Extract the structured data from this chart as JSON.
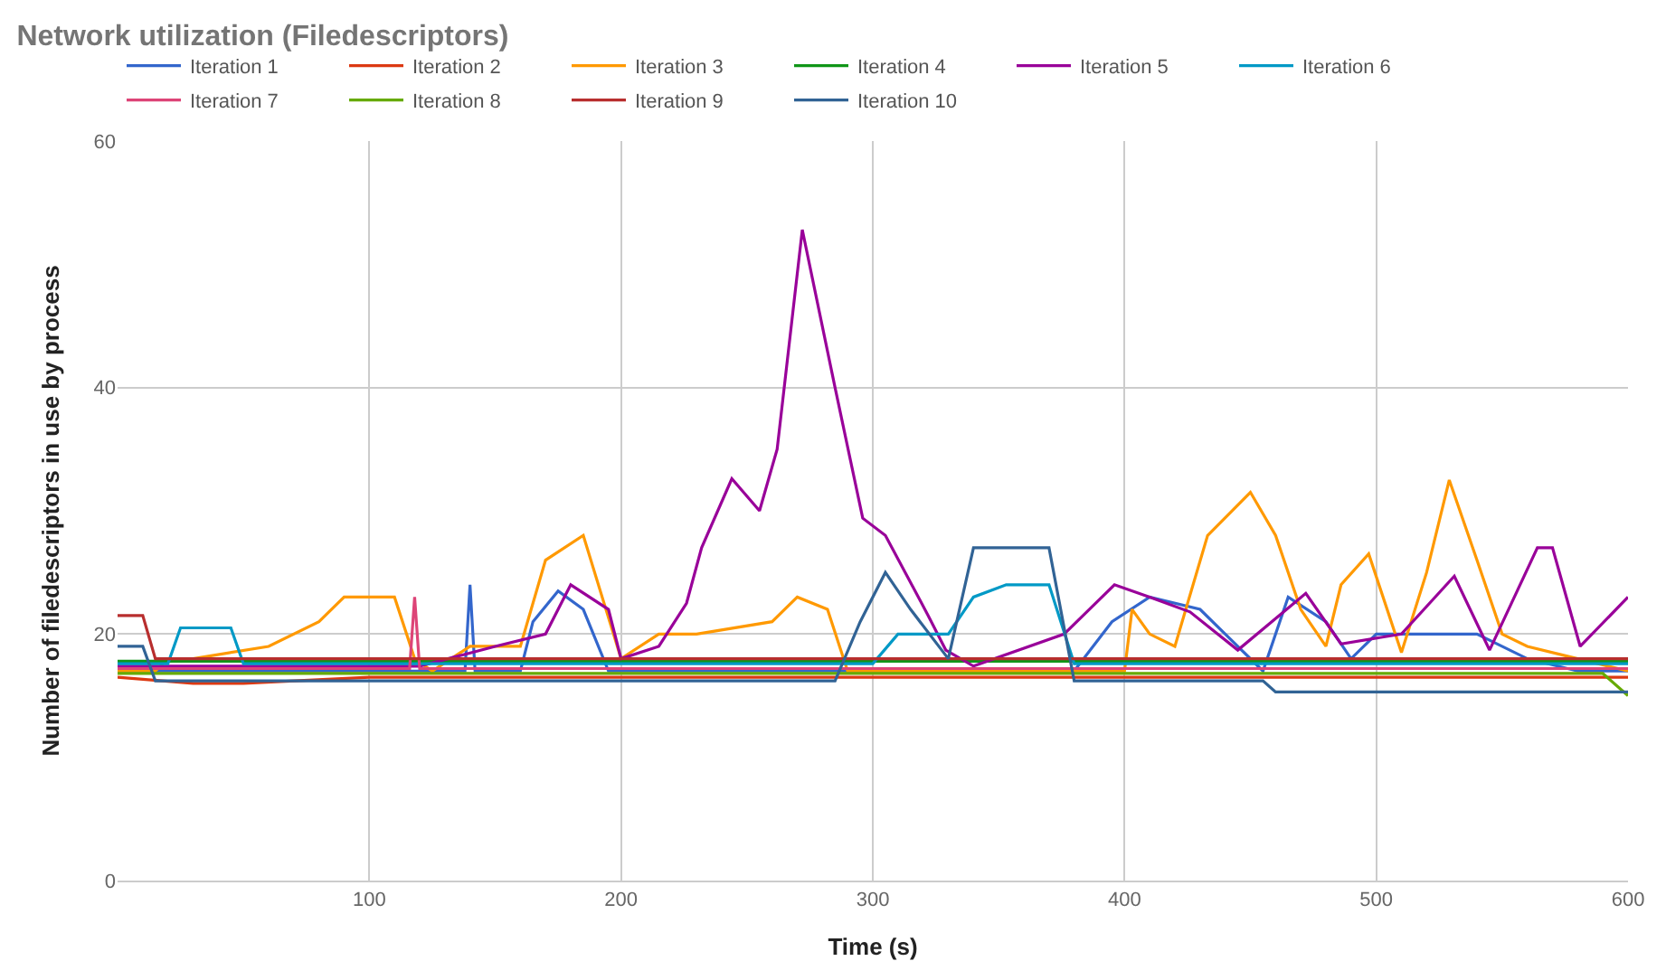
{
  "chart_data": {
    "type": "line",
    "title": "Network utilization (Filedescriptors)",
    "xlabel": "Time (s)",
    "ylabel": "Number of filedescriptors in use by process",
    "xlim": [
      0,
      600
    ],
    "xticks": [
      100,
      200,
      300,
      400,
      500,
      600
    ],
    "ylim": [
      0,
      60
    ],
    "yticks": [
      0,
      20,
      40,
      60
    ],
    "grid": true,
    "legend": "top",
    "marker": "none",
    "line_style": "solid",
    "series": [
      {
        "name": "Iteration 1",
        "color": "#3366cc",
        "x": [
          0,
          40,
          100,
          138,
          140,
          142,
          160,
          165,
          175,
          185,
          195,
          200,
          300,
          380,
          395,
          410,
          430,
          440,
          455,
          465,
          480,
          490,
          500,
          520,
          540,
          560,
          580,
          600
        ],
        "values": [
          17,
          17,
          17,
          17,
          24,
          17,
          17,
          21,
          23.5,
          22,
          17,
          17,
          17,
          17,
          21,
          23,
          22,
          20,
          17,
          23,
          21,
          18,
          20,
          20,
          20,
          18,
          17,
          17
        ]
      },
      {
        "name": "Iteration 2",
        "color": "#dc3912",
        "x": [
          0,
          30,
          50,
          100,
          200,
          300,
          400,
          500,
          600
        ],
        "values": [
          16.5,
          16,
          16,
          16.5,
          16.5,
          16.5,
          16.5,
          16.5,
          16.5
        ]
      },
      {
        "name": "Iteration 3",
        "color": "#ff9900",
        "x": [
          0,
          15,
          20,
          30,
          60,
          80,
          90,
          110,
          118,
          125,
          140,
          160,
          170,
          185,
          200,
          215,
          230,
          260,
          270,
          282,
          290,
          300,
          400,
          403,
          410,
          420,
          433,
          450,
          460,
          470,
          480,
          486,
          497,
          510,
          520,
          529,
          540,
          550,
          560,
          580,
          600
        ],
        "values": [
          17,
          17,
          18,
          18,
          19,
          21,
          23,
          23,
          18,
          17,
          19,
          19,
          26,
          28,
          18,
          20,
          20,
          21,
          23,
          22,
          17,
          17,
          17,
          22,
          20,
          19,
          28,
          31.5,
          28,
          22,
          19,
          24,
          26.5,
          18.5,
          25,
          32.5,
          26,
          20,
          19,
          18,
          17
        ]
      },
      {
        "name": "Iteration 4",
        "color": "#109618",
        "x": [
          0,
          200,
          400,
          600
        ],
        "values": [
          17.8,
          17.8,
          17.8,
          17.8
        ]
      },
      {
        "name": "Iteration 5",
        "color": "#990099",
        "x": [
          0,
          120,
          150,
          170,
          180,
          195,
          200,
          215,
          226,
          232,
          244,
          255,
          262,
          272,
          285,
          296,
          305,
          322,
          329,
          340,
          376,
          396,
          410,
          426,
          445,
          472,
          486,
          510,
          531,
          545,
          564,
          570,
          581,
          600
        ],
        "values": [
          17.4,
          17.4,
          19,
          20,
          24,
          22,
          18,
          19,
          22.5,
          27,
          32.6,
          30,
          35,
          52.8,
          40,
          29.4,
          28,
          21.5,
          18.7,
          17.4,
          20,
          24,
          23,
          21.8,
          18.7,
          23.3,
          19.2,
          20,
          24.7,
          18.7,
          27,
          27,
          19,
          23
        ]
      },
      {
        "name": "Iteration 6",
        "color": "#0099c6",
        "x": [
          0,
          20,
          25,
          45,
          50,
          300,
          310,
          330,
          340,
          353,
          370,
          380,
          600
        ],
        "values": [
          17.6,
          17.6,
          20.5,
          20.5,
          17.6,
          17.6,
          20,
          20,
          23,
          24,
          24,
          17.6,
          17.6
        ]
      },
      {
        "name": "Iteration 7",
        "color": "#dd4477",
        "x": [
          0,
          116,
          118,
          120,
          300,
          600
        ],
        "values": [
          17.2,
          17.2,
          23,
          17.2,
          17.2,
          17.2
        ]
      },
      {
        "name": "Iteration 8",
        "color": "#66aa00",
        "x": [
          0,
          300,
          590,
          600
        ],
        "values": [
          16.8,
          16.8,
          16.8,
          15
        ]
      },
      {
        "name": "Iteration 9",
        "color": "#b82e2e",
        "x": [
          0,
          10,
          15,
          300,
          600
        ],
        "values": [
          21.5,
          21.5,
          18,
          18,
          18
        ]
      },
      {
        "name": "Iteration 10",
        "color": "#316395",
        "x": [
          0,
          10,
          15,
          285,
          295,
          305,
          315,
          330,
          340,
          351,
          370,
          380,
          455,
          460,
          600
        ],
        "values": [
          19,
          19,
          16.2,
          16.2,
          21,
          25,
          22,
          18,
          27,
          27,
          27,
          16.2,
          16.2,
          15.3,
          15.3
        ]
      }
    ]
  }
}
